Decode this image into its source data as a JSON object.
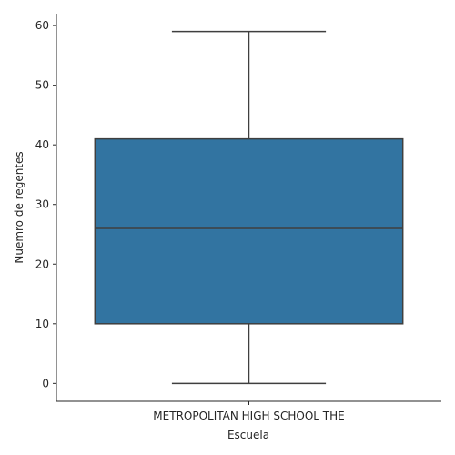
{
  "chart_data": {
    "type": "box",
    "xlabel": "Escuela",
    "ylabel": "Nuemro de regentes",
    "categories": [
      "METROPOLITAN HIGH SCHOOL THE"
    ],
    "boxes": [
      {
        "category": "METROPOLITAN HIGH SCHOOL THE",
        "min": 0,
        "q1": 10,
        "median": 26,
        "q3": 41,
        "max": 59
      }
    ],
    "ylim": [
      -3,
      62
    ],
    "yticks": [
      0,
      10,
      20,
      30,
      40,
      50,
      60
    ],
    "grid": false,
    "colors": {
      "box_fill": "#3274a1",
      "box_edge": "#3f3f3f",
      "axis": "#262626"
    }
  }
}
